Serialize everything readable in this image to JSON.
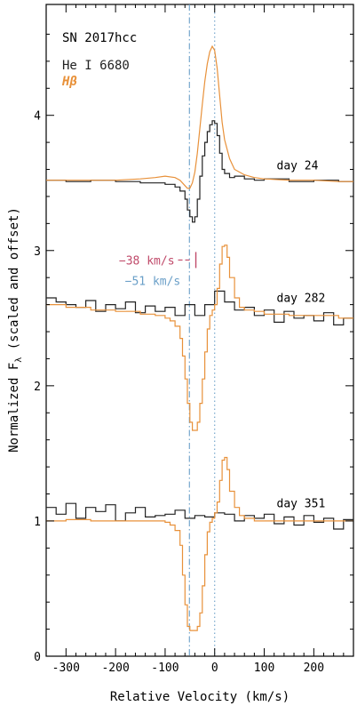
{
  "chart_data": {
    "type": "line",
    "xlabel": "Relative Velocity (km/s)",
    "ylabel": "Normalized F",
    "ylabel_sub": "λ",
    "ylabel_suffix": " (scaled and offset)",
    "xlim": [
      -340,
      280
    ],
    "ylim": [
      0,
      4.82
    ],
    "xticks": [
      -300,
      -200,
      -100,
      0,
      100,
      200
    ],
    "yticks": [
      0,
      1,
      2,
      3,
      4
    ],
    "legend": {
      "title": "SN 2017hcc",
      "entries": [
        {
          "label": "He I 6680",
          "color": "#222222"
        },
        {
          "label": "Hβ",
          "color": "#e8913a"
        }
      ]
    },
    "reference_lines": [
      {
        "x": -51,
        "label": "−51 km/s",
        "color": "#6a9fc8",
        "style": "dash-dot"
      },
      {
        "x": 0,
        "color": "#6a9fc8",
        "style": "dotted"
      }
    ],
    "annotation": {
      "x": -38,
      "label": "−38 km/s",
      "color": "#c04a6a",
      "y": 2.93
    },
    "series": [
      {
        "name": "He I 6680",
        "epoch": "day 24",
        "color": "#222222",
        "steps": true,
        "x": [
          -340,
          -300,
          -250,
          -200,
          -150,
          -120,
          -100,
          -80,
          -70,
          -60,
          -55,
          -50,
          -45,
          -40,
          -35,
          -30,
          -25,
          -20,
          -15,
          -10,
          -5,
          0,
          5,
          10,
          15,
          20,
          30,
          40,
          60,
          80,
          100,
          150,
          200,
          250,
          280
        ],
        "y": [
          3.52,
          3.51,
          3.52,
          3.51,
          3.5,
          3.5,
          3.49,
          3.47,
          3.44,
          3.38,
          3.3,
          3.25,
          3.21,
          3.25,
          3.38,
          3.55,
          3.7,
          3.8,
          3.88,
          3.93,
          3.96,
          3.94,
          3.85,
          3.72,
          3.6,
          3.57,
          3.54,
          3.55,
          3.53,
          3.52,
          3.53,
          3.51,
          3.52,
          3.51,
          3.51
        ]
      },
      {
        "name": "Hβ",
        "epoch": "day 24",
        "color": "#e8913a",
        "steps": false,
        "x": [
          -340,
          -300,
          -250,
          -200,
          -150,
          -120,
          -100,
          -80,
          -70,
          -60,
          -55,
          -50,
          -45,
          -40,
          -35,
          -30,
          -25,
          -20,
          -15,
          -10,
          -5,
          0,
          5,
          10,
          15,
          20,
          30,
          40,
          60,
          80,
          100,
          150,
          200,
          250,
          280
        ],
        "y": [
          3.52,
          3.52,
          3.52,
          3.52,
          3.53,
          3.54,
          3.55,
          3.54,
          3.52,
          3.48,
          3.46,
          3.46,
          3.5,
          3.58,
          3.72,
          3.9,
          4.08,
          4.25,
          4.38,
          4.47,
          4.51,
          4.48,
          4.35,
          4.15,
          3.95,
          3.82,
          3.68,
          3.6,
          3.56,
          3.54,
          3.53,
          3.52,
          3.52,
          3.51,
          3.51
        ]
      },
      {
        "name": "He I 6680",
        "epoch": "day 282",
        "color": "#222222",
        "steps": true,
        "x": [
          -340,
          -320,
          -300,
          -280,
          -260,
          -240,
          -220,
          -200,
          -180,
          -160,
          -140,
          -120,
          -100,
          -80,
          -60,
          -40,
          -20,
          0,
          20,
          40,
          60,
          80,
          100,
          120,
          140,
          160,
          180,
          200,
          220,
          240,
          260,
          280
        ],
        "y": [
          2.65,
          2.62,
          2.6,
          2.58,
          2.63,
          2.55,
          2.6,
          2.57,
          2.62,
          2.54,
          2.59,
          2.55,
          2.58,
          2.52,
          2.6,
          2.52,
          2.6,
          2.7,
          2.62,
          2.56,
          2.58,
          2.52,
          2.56,
          2.47,
          2.55,
          2.5,
          2.52,
          2.48,
          2.54,
          2.45,
          2.5,
          2.47
        ]
      },
      {
        "name": "Hβ",
        "epoch": "day 282",
        "color": "#e8913a",
        "steps": true,
        "x": [
          -340,
          -300,
          -250,
          -200,
          -150,
          -120,
          -100,
          -90,
          -80,
          -70,
          -65,
          -60,
          -55,
          -50,
          -45,
          -40,
          -35,
          -30,
          -25,
          -20,
          -15,
          -10,
          -5,
          0,
          5,
          10,
          15,
          20,
          25,
          30,
          40,
          50,
          60,
          80,
          100,
          150,
          200,
          250,
          280
        ],
        "y": [
          2.6,
          2.58,
          2.56,
          2.55,
          2.53,
          2.52,
          2.5,
          2.48,
          2.44,
          2.35,
          2.22,
          2.05,
          1.87,
          1.73,
          1.67,
          1.67,
          1.73,
          1.87,
          2.05,
          2.25,
          2.42,
          2.52,
          2.56,
          2.6,
          2.72,
          2.9,
          3.03,
          3.04,
          2.95,
          2.8,
          2.65,
          2.58,
          2.56,
          2.55,
          2.53,
          2.52,
          2.52,
          2.5,
          2.5
        ]
      },
      {
        "name": "He I 6680",
        "epoch": "day 351",
        "color": "#222222",
        "steps": true,
        "x": [
          -340,
          -320,
          -300,
          -280,
          -260,
          -240,
          -220,
          -200,
          -180,
          -160,
          -140,
          -120,
          -100,
          -80,
          -60,
          -40,
          -20,
          0,
          20,
          40,
          60,
          80,
          100,
          120,
          140,
          160,
          180,
          200,
          220,
          240,
          260,
          280
        ],
        "y": [
          1.1,
          1.05,
          1.13,
          1.02,
          1.1,
          1.07,
          1.12,
          1.0,
          1.06,
          1.1,
          1.03,
          1.04,
          1.05,
          1.08,
          1.02,
          1.04,
          1.03,
          1.06,
          1.05,
          1.0,
          1.04,
          1.02,
          1.05,
          0.98,
          1.03,
          0.97,
          1.04,
          0.99,
          1.02,
          0.94,
          1.01,
          0.96
        ]
      },
      {
        "name": "Hβ",
        "epoch": "day 351",
        "color": "#e8913a",
        "steps": true,
        "x": [
          -340,
          -300,
          -250,
          -200,
          -150,
          -120,
          -100,
          -90,
          -80,
          -70,
          -65,
          -60,
          -55,
          -50,
          -45,
          -40,
          -35,
          -30,
          -25,
          -20,
          -15,
          -10,
          -5,
          0,
          5,
          10,
          15,
          20,
          25,
          30,
          40,
          50,
          60,
          80,
          100,
          150,
          200,
          250,
          280
        ],
        "y": [
          1.0,
          1.01,
          1.0,
          1.0,
          1.0,
          1.0,
          0.99,
          0.97,
          0.93,
          0.82,
          0.6,
          0.38,
          0.22,
          0.19,
          0.19,
          0.19,
          0.22,
          0.32,
          0.52,
          0.75,
          0.92,
          0.99,
          1.02,
          1.06,
          1.14,
          1.3,
          1.45,
          1.47,
          1.38,
          1.22,
          1.1,
          1.04,
          1.02,
          1.0,
          1.0,
          1.0,
          1.0,
          1.0,
          1.0
        ]
      }
    ],
    "epoch_labels": [
      {
        "label": "day  24",
        "x": 125,
        "y": 3.6
      },
      {
        "label": "day 282",
        "x": 125,
        "y": 2.62
      },
      {
        "label": "day 351",
        "x": 125,
        "y": 1.1
      }
    ]
  }
}
